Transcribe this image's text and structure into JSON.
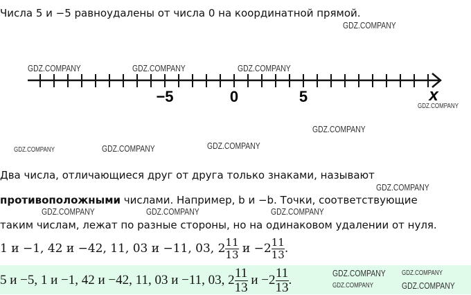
{
  "intro": "Числа 5 и −5 равноудалены от числа 0 на координатной прямой.",
  "number_line": {
    "labels": [
      "−5",
      "0",
      "5"
    ],
    "axis_label": "x",
    "min": -14,
    "max": 14
  },
  "paragraph": {
    "line1": "Два числа, отличающиеся друг от друга только знаками, называют",
    "bold": "противоположными",
    "line2_rest": " числами. Например, b и −b. Точки, соответствующие",
    "line3": "таким числам, лежат по разные стороны, но на одинаковом удалении от нуля."
  },
  "examples1": {
    "text": "1 и −1, 42 и −42, 11, 03 и −11, 03, 2",
    "mid": " и −2",
    "num": "11",
    "den": "13",
    "end": "."
  },
  "examples2": {
    "text": "5 и −5, 1 и −1, 42 и −42, 11, 03 и −11, 03, 2",
    "mid": " и −2",
    "num": "11",
    "den": "13",
    "end": "."
  },
  "highlight_color": "#e1fbea",
  "watermark": "GDZ.COMPANY"
}
